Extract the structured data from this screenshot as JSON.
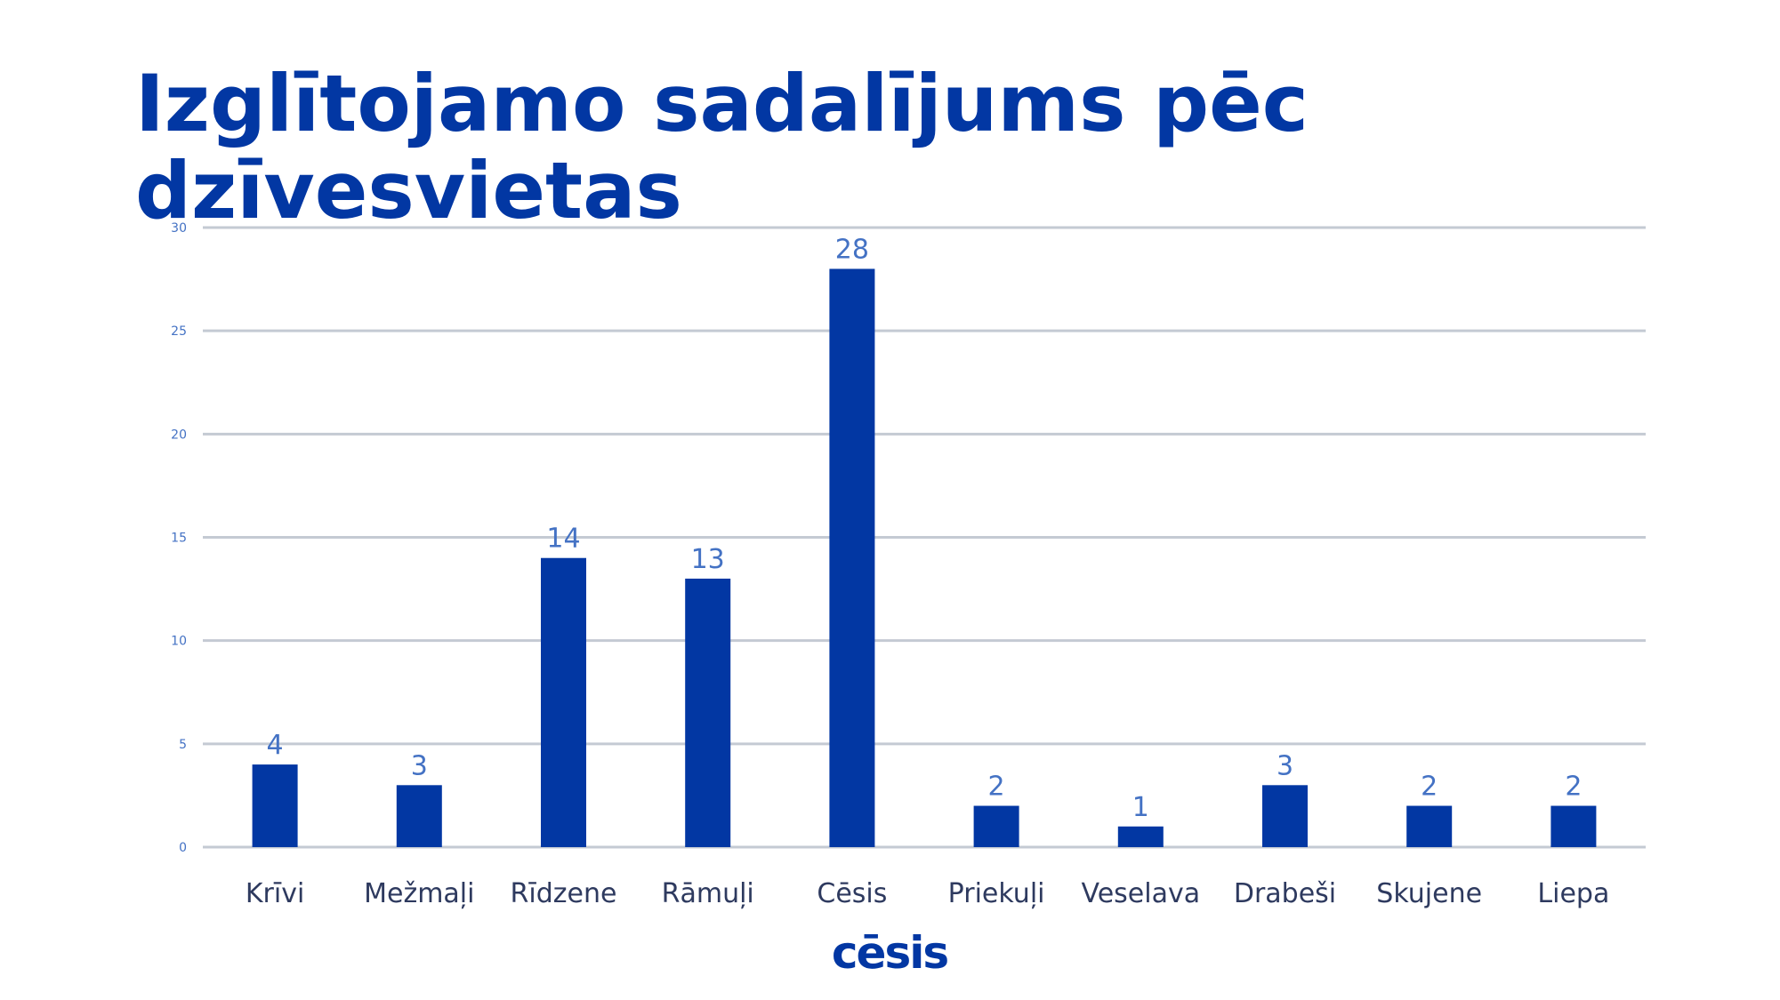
{
  "slide": {
    "logo_text": "cēsis"
  },
  "colors": {
    "bar": "#0237a3",
    "data_label": "#4472c4",
    "grid": "#c4cad3",
    "tick_label": "#4472c4",
    "category_label": "#2e3a5f"
  },
  "chart_data": {
    "type": "bar",
    "title": "Izglītojamo sadalījums pēc dzīvesvietas",
    "xlabel": "",
    "ylabel": "",
    "categories": [
      "Krīvi",
      "Mežmaļi",
      "Rīdzene",
      "Rāmuļi",
      "Cēsis",
      "Priekuļi",
      "Veselava",
      "Drabeši",
      "Skujene",
      "Liepa"
    ],
    "values": [
      4,
      3,
      14,
      13,
      28,
      2,
      1,
      3,
      2,
      2
    ],
    "ylim": [
      0,
      30
    ],
    "yticks": [
      0,
      5,
      10,
      15,
      20,
      25,
      30
    ],
    "grid": true,
    "legend": "none",
    "data_labels": true
  }
}
